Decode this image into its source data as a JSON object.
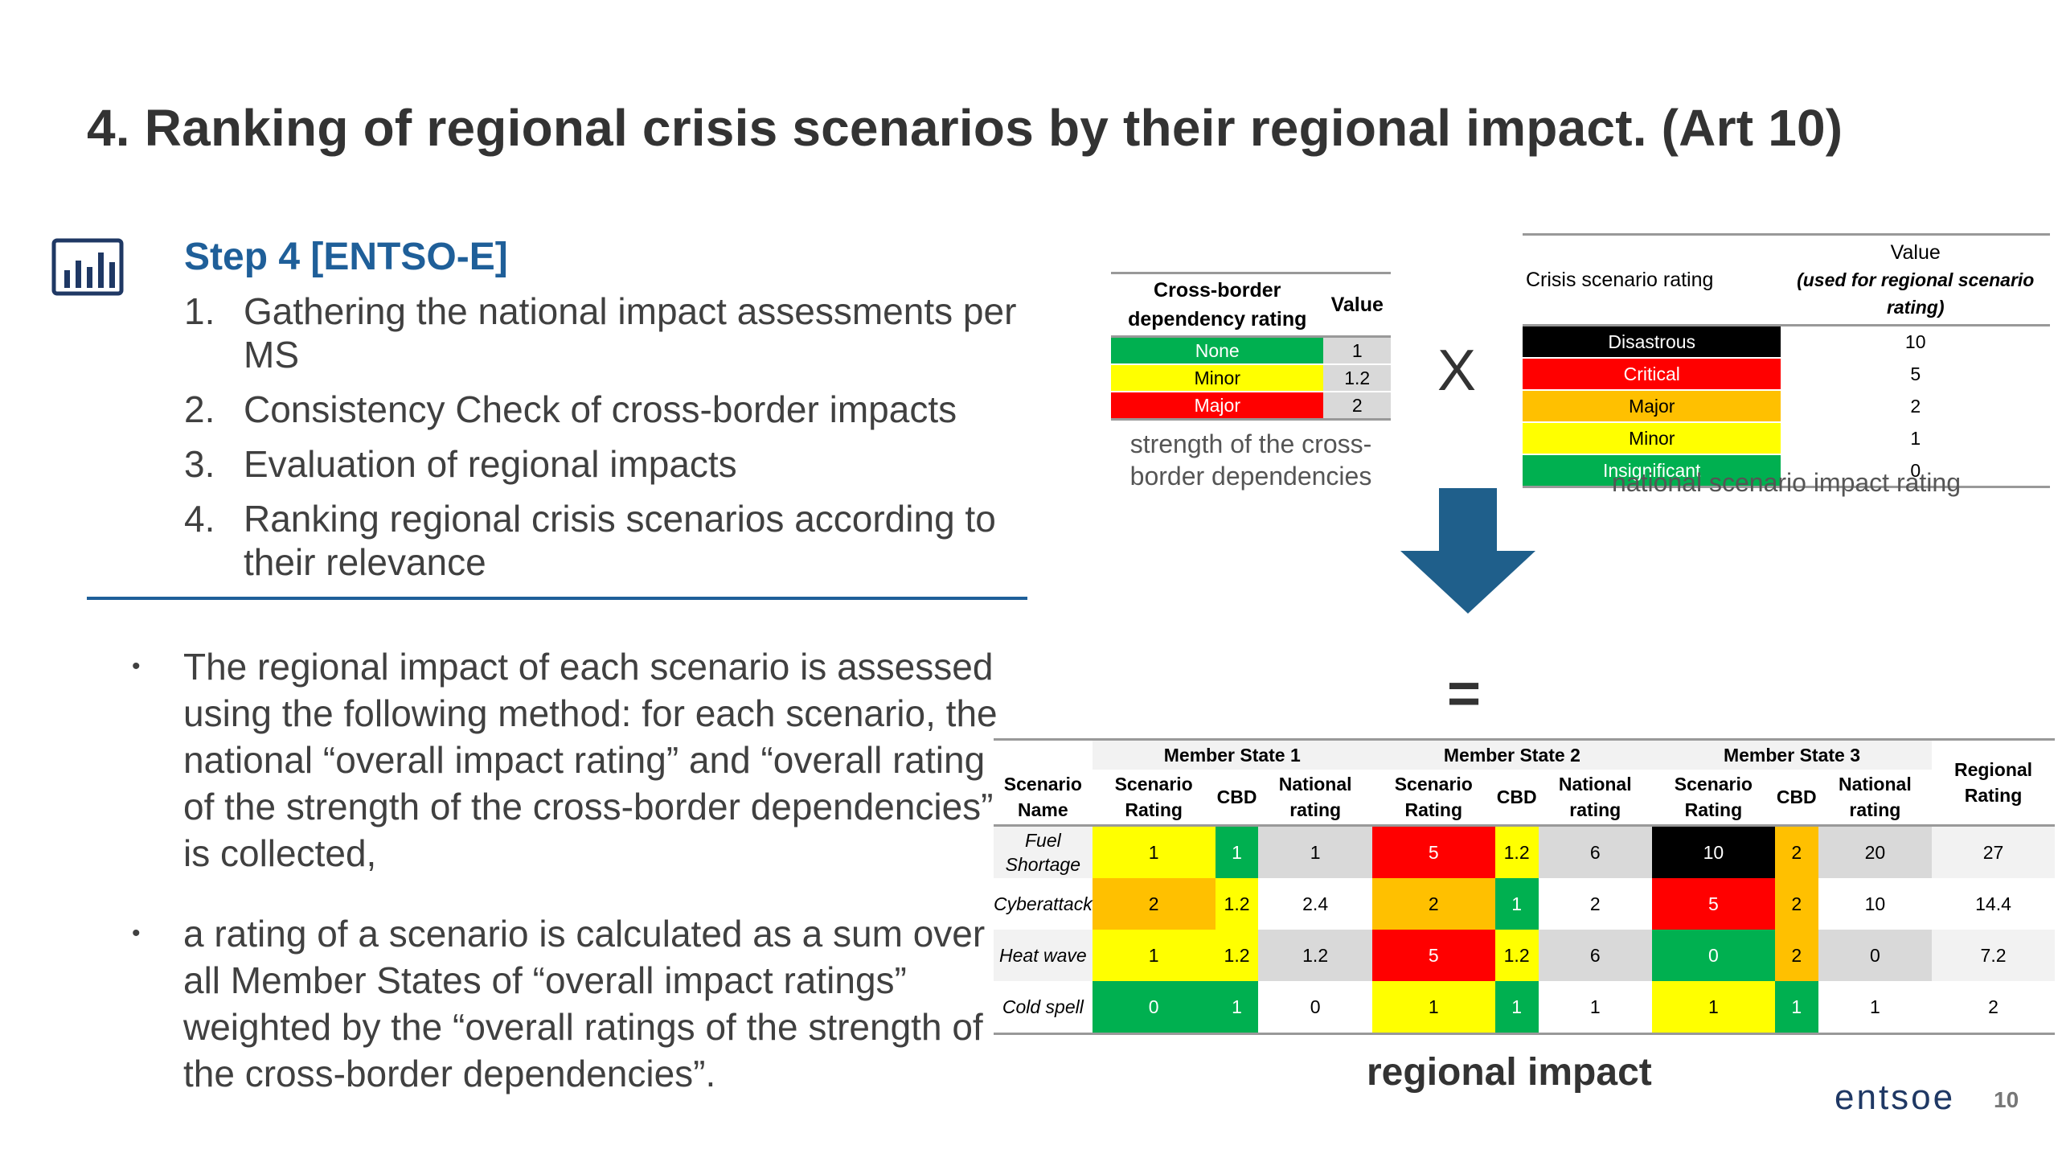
{
  "title": "4. Ranking of regional crisis scenarios by their regional impact. (Art 10)",
  "step": {
    "title": "Step 4 [ENTSO-E]",
    "items": [
      {
        "num": "1.",
        "text": "Gathering the national impact assessments per MS"
      },
      {
        "num": "2.",
        "text": "Consistency Check of cross-border impacts"
      },
      {
        "num": "3.",
        "text": "Evaluation of regional impacts"
      },
      {
        "num": "4.",
        "text": "Ranking regional crisis scenarios according to their relevance"
      }
    ]
  },
  "bullets": [
    "The regional impact of each scenario is assessed using the following method: for each scenario, the national “overall impact rating” and “overall rating of the strength of the cross-border dependencies” is collected,",
    "a rating of a scenario is calculated as a sum over all Member States of “overall impact ratings” weighted by the “overall ratings of the strength of the cross-border dependencies”."
  ],
  "cross_border": {
    "header_rating": "Cross-border dependency rating",
    "header_value": "Value",
    "rows": [
      {
        "label": "None",
        "value": "1",
        "color": "#00b050",
        "text_color": "#ffffff"
      },
      {
        "label": "Minor",
        "value": "1.2",
        "color": "#ffff00",
        "text_color": "#000000"
      },
      {
        "label": "Major",
        "value": "2",
        "color": "#ff0000",
        "text_color": "#ffffff"
      }
    ],
    "caption": "strength of the cross-border dependencies"
  },
  "operator_multiply": "X",
  "crisis": {
    "header_rating": "Crisis scenario rating",
    "header_value": "Value",
    "header_value_sub": "(used for regional scenario rating)",
    "rows": [
      {
        "label": "Disastrous",
        "value": "10",
        "color": "#000000",
        "text_color": "#ffffff"
      },
      {
        "label": "Critical",
        "value": "5",
        "color": "#ff0000",
        "text_color": "#ffffff"
      },
      {
        "label": "Major",
        "value": "2",
        "color": "#ffc000",
        "text_color": "#000000"
      },
      {
        "label": "Minor",
        "value": "1",
        "color": "#ffff00",
        "text_color": "#000000"
      },
      {
        "label": "Insignificant",
        "value": "0",
        "color": "#00b050",
        "text_color": "#ffffff"
      }
    ],
    "caption": "national scenario impact rating"
  },
  "operator_equals": "=",
  "regional": {
    "member_states": [
      "Member State 1",
      "Member State 2",
      "Member State 3"
    ],
    "col_scenario_name": "Scenario Name",
    "col_scenario_rating": "Scenario Rating",
    "col_cbd": "CBD",
    "col_national": "National rating",
    "col_regional": "Regional Rating",
    "rows": [
      {
        "name": "Fuel Shortage",
        "cells": [
          "1",
          "1",
          "1",
          "5",
          "1.2",
          "6",
          "10",
          "2",
          "20"
        ],
        "regional": "27"
      },
      {
        "name": "Cyberattack",
        "cells": [
          "2",
          "1.2",
          "2.4",
          "2",
          "1",
          "2",
          "5",
          "2",
          "10"
        ],
        "regional": "14.4"
      },
      {
        "name": "Heat wave",
        "cells": [
          "1",
          "1.2",
          "1.2",
          "5",
          "1.2",
          "6",
          "0",
          "2",
          "0"
        ],
        "regional": "7.2"
      },
      {
        "name": "Cold spell",
        "cells": [
          "0",
          "1",
          "0",
          "1",
          "1",
          "1",
          "1",
          "1",
          "1"
        ],
        "regional": "2"
      }
    ],
    "caption": "regional impact"
  },
  "logo_text": "entsoe",
  "page_number": "10"
}
